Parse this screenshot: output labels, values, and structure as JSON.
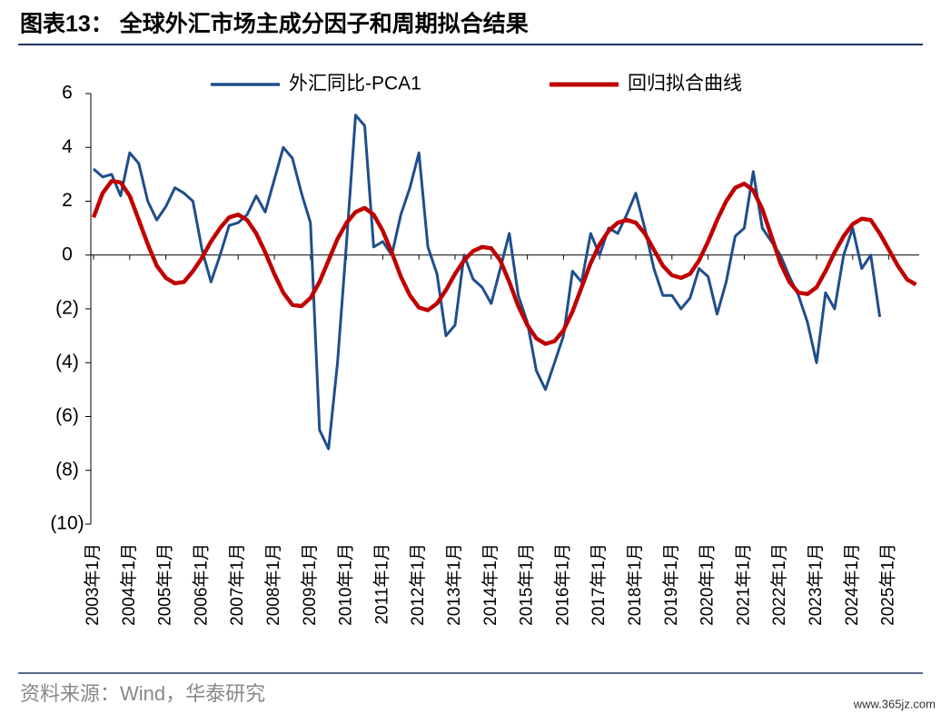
{
  "chart_data": {
    "type": "line",
    "title": "图表13： 全球外汇市场主成分因子和周期拟合结果",
    "source": "资料来源：Wind，华泰研究",
    "watermark": "www.365jz.com",
    "categories": [
      "2003年1月",
      null,
      null,
      null,
      "2004年1月",
      null,
      null,
      null,
      "2005年1月",
      null,
      null,
      null,
      "2006年1月",
      null,
      null,
      null,
      "2007年1月",
      null,
      null,
      null,
      "2008年1月",
      null,
      null,
      null,
      "2009年1月",
      null,
      null,
      null,
      "2010年1月",
      null,
      null,
      null,
      "2011年1月",
      null,
      null,
      null,
      "2012年1月",
      null,
      null,
      null,
      "2013年1月",
      null,
      null,
      null,
      "2014年1月",
      null,
      null,
      null,
      "2015年1月",
      null,
      null,
      null,
      "2016年1月",
      null,
      null,
      null,
      "2017年1月",
      null,
      null,
      null,
      "2018年1月",
      null,
      null,
      null,
      "2019年1月",
      null,
      null,
      null,
      "2020年1月",
      null,
      null,
      null,
      "2021年1月",
      null,
      null,
      null,
      "2022年1月",
      null,
      null,
      null,
      "2023年1月",
      null,
      null,
      null,
      "2024年1月",
      null,
      null,
      null,
      "2025年1月",
      null,
      null,
      null
    ],
    "series": [
      {
        "name": "外汇同比-PCA1",
        "color": "#1f4e8c",
        "values": [
          3.2,
          2.9,
          3.0,
          2.2,
          3.8,
          3.4,
          2.0,
          1.3,
          1.8,
          2.5,
          2.3,
          2.0,
          0.2,
          -1.0,
          0.0,
          1.1,
          1.2,
          1.5,
          2.2,
          1.6,
          2.8,
          4.0,
          3.6,
          2.3,
          1.2,
          -6.5,
          -7.2,
          -4.0,
          0.5,
          5.2,
          4.8,
          0.3,
          0.5,
          0.0,
          1.5,
          2.5,
          3.8,
          0.3,
          -0.7,
          -3.0,
          -2.6,
          0.0,
          -0.9,
          -1.2,
          -1.8,
          -0.5,
          0.8,
          -1.5,
          -2.5,
          -4.3,
          -5.0,
          -4.0,
          -3.0,
          -0.6,
          -1.0,
          0.8,
          0.0,
          1.0,
          0.8,
          1.5,
          2.3,
          1.0,
          -0.5,
          -1.5,
          -1.5,
          -2.0,
          -1.6,
          -0.5,
          -0.8,
          -2.2,
          -1.0,
          0.7,
          1.0,
          3.1,
          1.0,
          0.5,
          0.0,
          -0.8,
          -1.5,
          -2.5,
          -4.0,
          -1.4,
          -2.0,
          0.0,
          1.0,
          -0.5,
          0.0,
          -2.3,
          null,
          null,
          null,
          null
        ]
      },
      {
        "name": "回归拟合曲线",
        "color": "#c00000",
        "values": [
          1.4,
          2.3,
          2.75,
          2.7,
          2.2,
          1.3,
          0.4,
          -0.4,
          -0.85,
          -1.05,
          -1.0,
          -0.6,
          -0.1,
          0.5,
          1.0,
          1.4,
          1.5,
          1.3,
          0.8,
          0.1,
          -0.7,
          -1.4,
          -1.85,
          -1.9,
          -1.6,
          -1.0,
          -0.2,
          0.6,
          1.2,
          1.6,
          1.75,
          1.5,
          0.9,
          0.1,
          -0.8,
          -1.5,
          -1.95,
          -2.05,
          -1.8,
          -1.3,
          -0.7,
          -0.2,
          0.15,
          0.3,
          0.25,
          -0.2,
          -1.0,
          -1.9,
          -2.6,
          -3.1,
          -3.3,
          -3.2,
          -2.8,
          -2.1,
          -1.2,
          -0.3,
          0.4,
          0.9,
          1.2,
          1.3,
          1.2,
          0.8,
          0.2,
          -0.4,
          -0.75,
          -0.85,
          -0.7,
          -0.2,
          0.5,
          1.3,
          2.0,
          2.5,
          2.65,
          2.4,
          1.7,
          0.7,
          -0.3,
          -1.0,
          -1.4,
          -1.45,
          -1.2,
          -0.6,
          0.1,
          0.7,
          1.15,
          1.35,
          1.3,
          0.8,
          0.2,
          -0.4,
          -0.9,
          -1.1
        ]
      }
    ],
    "ylim": [
      -10,
      6
    ],
    "yticks": [
      {
        "value": -10,
        "label": "(10)"
      },
      {
        "value": -8,
        "label": "(8)"
      },
      {
        "value": -6,
        "label": "(6)"
      },
      {
        "value": -4,
        "label": "(4)"
      },
      {
        "value": -2,
        "label": "(2)"
      },
      0,
      2,
      4,
      6
    ],
    "legend": "top"
  }
}
